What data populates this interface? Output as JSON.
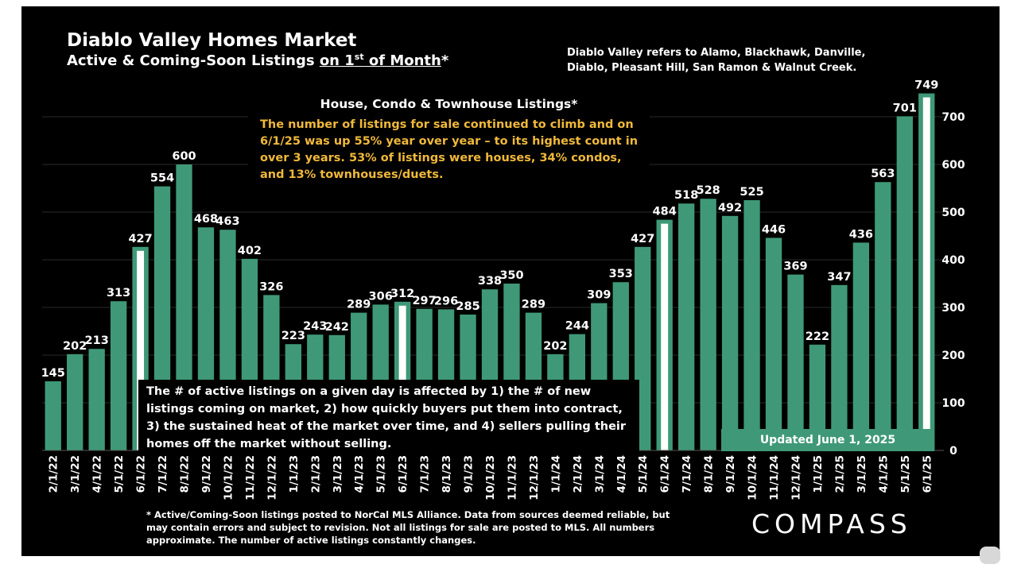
{
  "header": {
    "title": "Diablo Valley Homes Market",
    "subtitle_pre": "Active & Coming-Soon Listings ",
    "subtitle_u1": "on 1",
    "subtitle_sup": "st",
    "subtitle_u2": " of Month",
    "subtitle_post": "*",
    "definition": "Diablo Valley refers to Alamo, Blackhawk, Danville, Diablo, Pleasant Hill, San Ramon & Walnut Creek."
  },
  "callout_top": {
    "heading": "House, Condo & Townhouse Listings*",
    "body": "The number of listings for sale continued to climb and on 6/1/25 was up 55% year over year – to its highest count in over 3 years. 53% of listings were houses, 34% condos, and 13% townhouses/duets."
  },
  "callout_bottom": {
    "body": "The # of active listings on a given day is affected by 1) the # of new listings coming on market, 2) how quickly buyers put them into contract, 3) the sustained heat of the market over time, and 4) sellers pulling their homes off the market without selling."
  },
  "updated": "Updated June 1, 2025",
  "footnote": "* Active/Coming-Soon listings posted to NorCal MLS Alliance.  Data from sources deemed reliable, but may contain errors and subject to revision.  Not all listings for sale are posted to MLS. All numbers approximate. The number of active listings constantly changes.",
  "logo": "COMPASS",
  "colors": {
    "bar": "#3f9978",
    "highlight_inner": "#ffffff",
    "background": "#000000",
    "callout_text": "#f0b93a"
  },
  "chart_data": {
    "type": "bar",
    "categories": [
      "2/1/22",
      "3/1/22",
      "4/1/22",
      "5/1/22",
      "6/1/22",
      "7/1/22",
      "8/1/22",
      "9/1/22",
      "10/1/22",
      "11/1/22",
      "12/1/22",
      "1/1/23",
      "2/1/23",
      "3/1/23",
      "4/1/23",
      "5/1/23",
      "6/1/23",
      "7/1/23",
      "8/1/23",
      "9/1/23",
      "10/1/23",
      "11/1/23",
      "12/1/23",
      "1/1/24",
      "2/1/24",
      "3/1/24",
      "4/1/24",
      "5/1/24",
      "6/1/24",
      "7/1/24",
      "8/1/24",
      "9/1/24",
      "10/1/24",
      "11/1/24",
      "12/1/24",
      "1/1/25",
      "2/1/25",
      "3/1/25",
      "4/1/25",
      "5/1/25",
      "6/1/25"
    ],
    "values": [
      145,
      202,
      213,
      313,
      427,
      554,
      600,
      468,
      463,
      402,
      326,
      223,
      243,
      242,
      289,
      306,
      312,
      297,
      296,
      285,
      338,
      350,
      289,
      202,
      244,
      309,
      353,
      427,
      484,
      518,
      528,
      492,
      525,
      446,
      369,
      222,
      347,
      436,
      563,
      701,
      749
    ],
    "value_labels": [
      "145",
      "202",
      "213",
      "313",
      "427",
      "554",
      "600",
      "468",
      "463",
      "402",
      "326",
      "223",
      "243",
      "242",
      "289",
      "306",
      "312",
      "297",
      "296",
      "285",
      "338",
      "350",
      "289",
      "202",
      "244",
      "309",
      "353",
      "427",
      "484",
      "518",
      "528",
      "492",
      "525",
      "446",
      "369",
      "222",
      "347",
      "436",
      "563",
      "701",
      "749"
    ],
    "highlighted": [
      "6/1/22",
      "6/1/23",
      "6/1/24",
      "6/1/25"
    ],
    "y_ticks": [
      "0",
      "100",
      "200",
      "300",
      "400",
      "500",
      "600",
      "700"
    ],
    "ylim": [
      0,
      750
    ],
    "y_axis_side": "right",
    "grid": true
  }
}
